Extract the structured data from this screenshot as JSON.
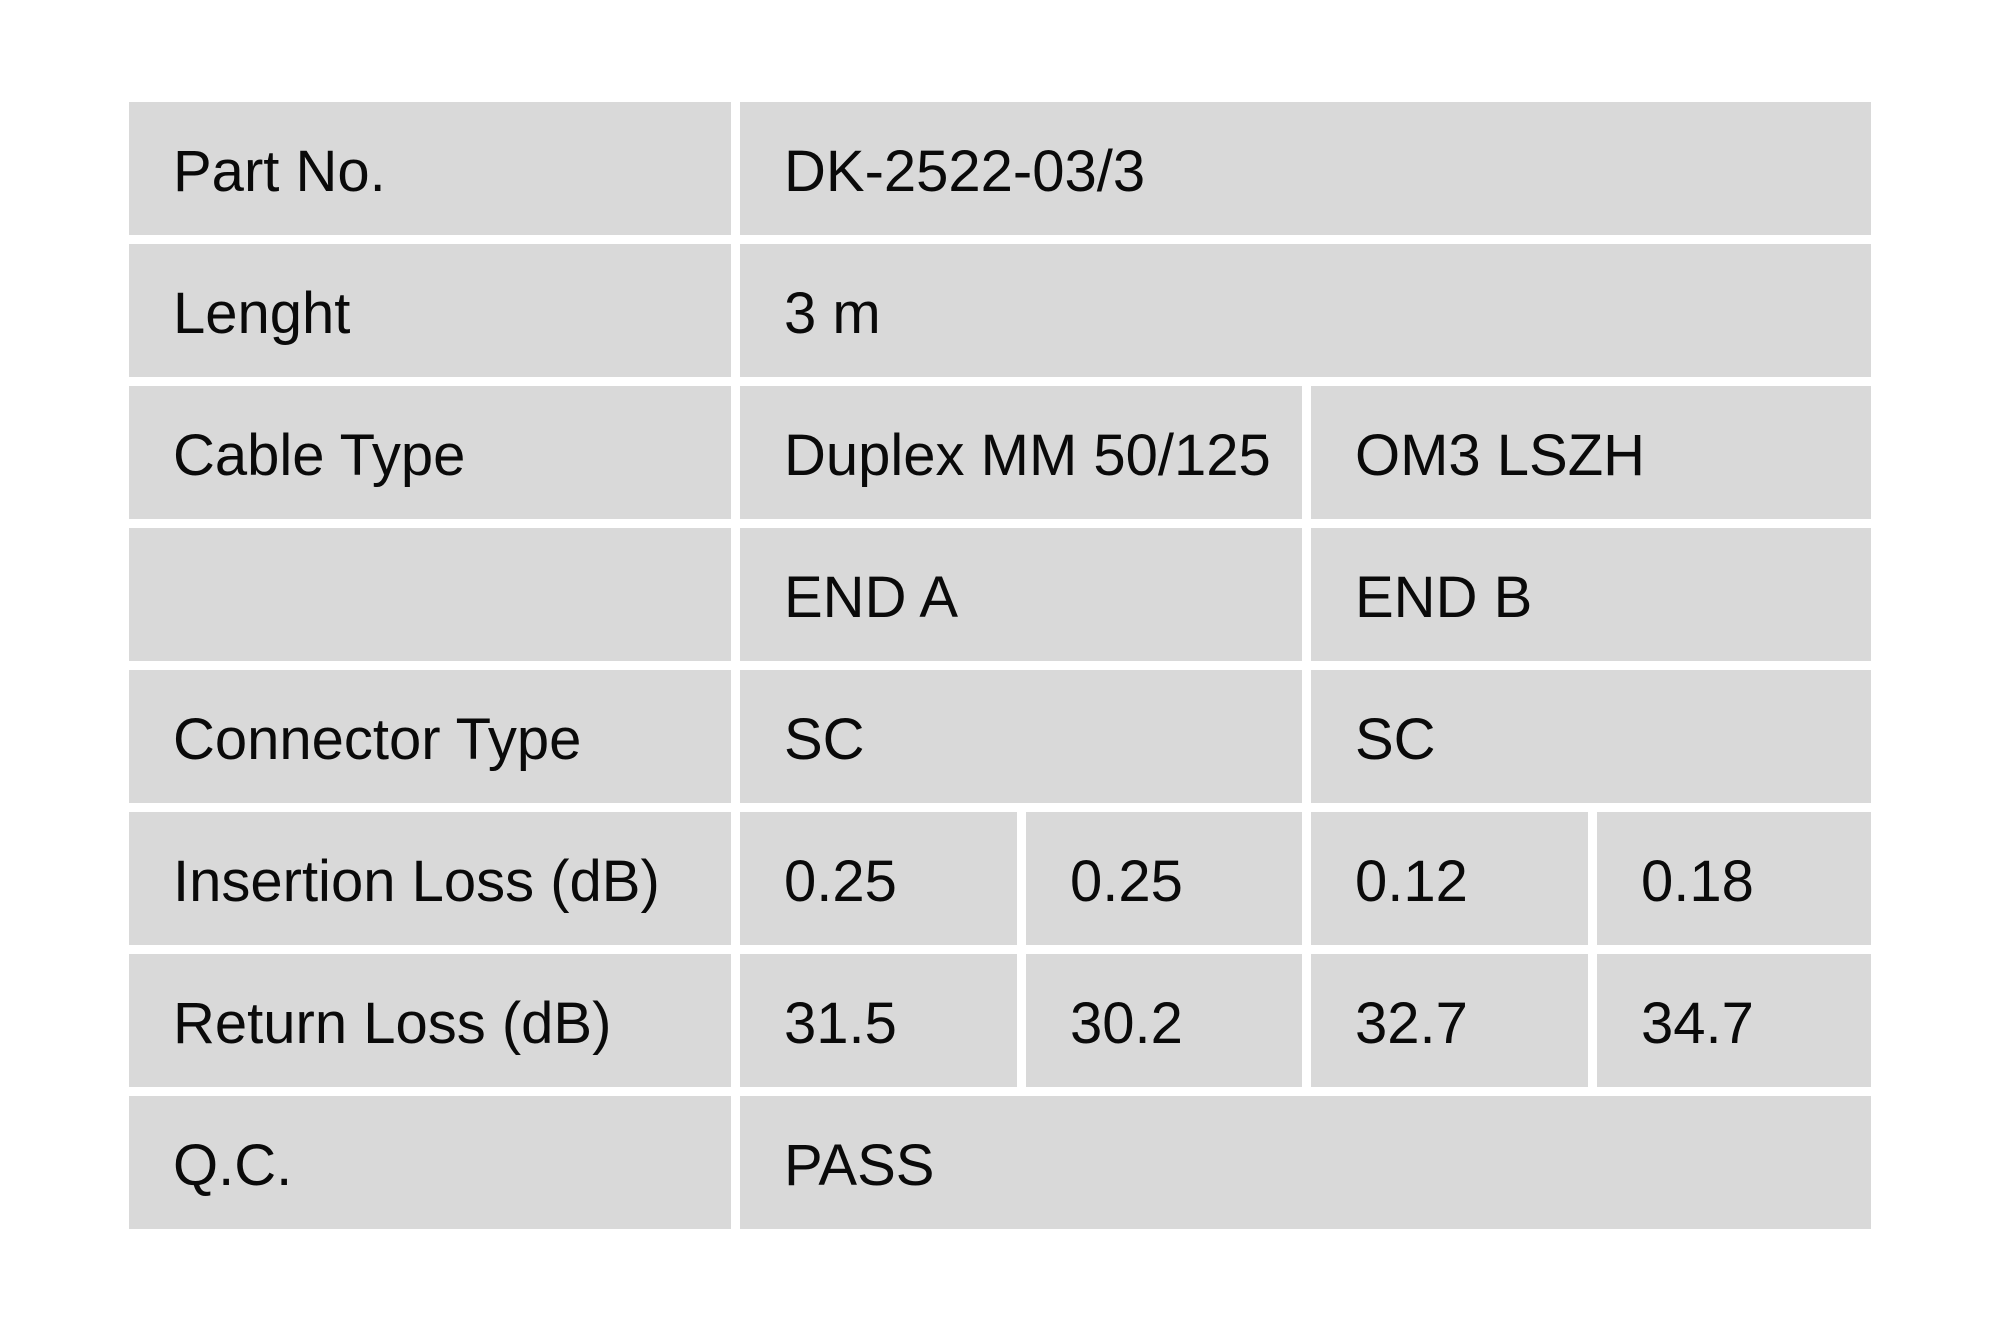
{
  "page": {
    "background": "#ffffff"
  },
  "colors": {
    "cell_background": "#d9d9d9",
    "text": "#0a0a0a"
  },
  "table": {
    "rows": [
      {
        "label": "Part No.",
        "cells": [
          {
            "text": "DK-2522-03/3",
            "span": 4
          }
        ]
      },
      {
        "label": "Lenght",
        "cells": [
          {
            "text": "3 m",
            "span": 4
          }
        ]
      },
      {
        "label": "Cable Type",
        "cells": [
          {
            "text": "Duplex MM 50/125",
            "span": 2
          },
          {
            "text": "OM3 LSZH",
            "span": 2
          }
        ]
      },
      {
        "label": "",
        "cells": [
          {
            "text": "END A",
            "span": 2
          },
          {
            "text": "END B",
            "span": 2
          }
        ]
      },
      {
        "label": "Connector Type",
        "cells": [
          {
            "text": "SC",
            "span": 2
          },
          {
            "text": "SC",
            "span": 2
          }
        ]
      },
      {
        "label": "Insertion Loss (dB)",
        "cells": [
          {
            "text": "0.25",
            "span": 1
          },
          {
            "text": "0.25",
            "span": 1
          },
          {
            "text": "0.12",
            "span": 1
          },
          {
            "text": "0.18",
            "span": 1
          }
        ]
      },
      {
        "label": "Return Loss (dB)",
        "cells": [
          {
            "text": "31.5",
            "span": 1
          },
          {
            "text": "30.2",
            "span": 1
          },
          {
            "text": "32.7",
            "span": 1
          },
          {
            "text": "34.7",
            "span": 1
          }
        ]
      },
      {
        "label": "Q.C.",
        "cells": [
          {
            "text": "PASS",
            "span": 4
          }
        ]
      }
    ]
  }
}
